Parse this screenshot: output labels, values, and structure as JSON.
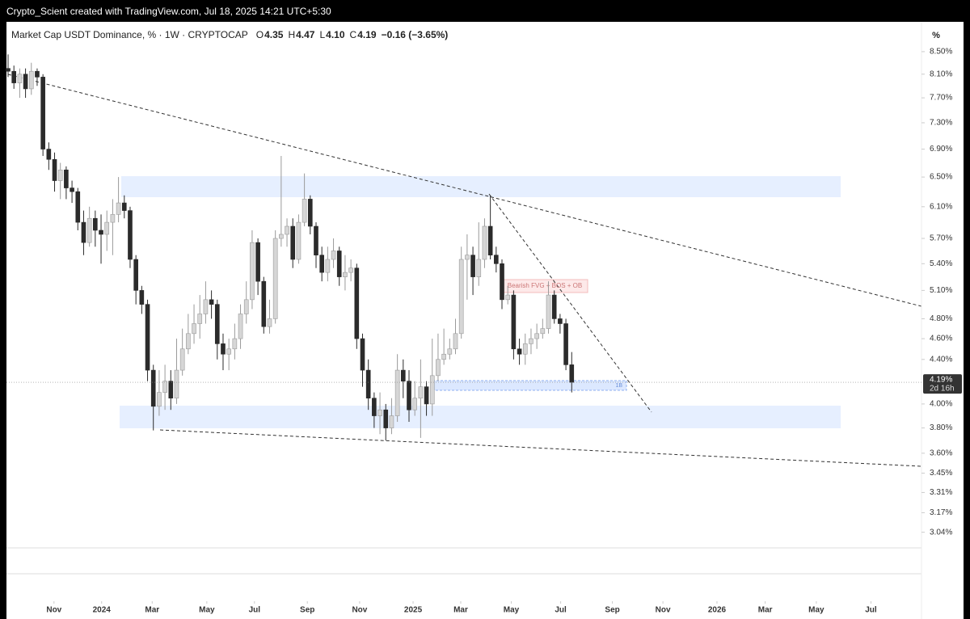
{
  "banner": "Crypto_Scient created with TradingView.com, Jul 18, 2025 14:21 UTC+5:30",
  "legend": {
    "title": "Market Cap USDT Dominance, % · 1W · CRYPTOCAP",
    "ohlc": [
      {
        "key": "O",
        "value": "4.35"
      },
      {
        "key": "H",
        "value": "4.47"
      },
      {
        "key": "L",
        "value": "4.10"
      },
      {
        "key": "C",
        "value": "4.19"
      }
    ],
    "change": "−0.16 (−3.65%)"
  },
  "chart_data": {
    "type": "candlestick",
    "log": true,
    "axis_unit": "%",
    "up_color": "#d6d6d6",
    "down_color": "#2b2b2b",
    "annotation": "Bearish FVG + BOS + OB",
    "zone_label": "1B",
    "current": {
      "value": 4.19,
      "label": "4.19%"
    },
    "countdown": "2d 16h",
    "open": [
      8.2,
      8.15,
      7.95,
      8.1,
      7.85,
      8.15,
      8.05,
      6.9,
      6.75,
      6.45,
      6.6,
      6.35,
      6.3,
      5.9,
      5.65,
      5.95,
      5.8,
      5.75,
      5.9,
      6.0,
      6.15,
      6.05,
      5.45,
      5.1,
      4.95,
      4.3,
      3.98,
      4.1,
      4.2,
      4.05,
      4.3,
      4.5,
      4.65,
      4.75,
      4.85,
      5.0,
      4.95,
      4.55,
      4.45,
      4.5,
      4.6,
      4.85,
      5.0,
      5.65,
      5.2,
      4.72,
      4.8,
      5.7,
      5.75,
      5.85,
      5.45,
      5.9,
      6.2,
      5.85,
      5.5,
      5.3,
      5.45,
      5.55,
      5.25,
      5.3,
      5.35,
      4.6,
      4.3,
      4.05,
      3.9,
      3.95,
      3.8,
      3.9,
      4.3,
      4.2,
      3.95,
      4.05,
      4.15,
      4.0,
      4.25,
      4.4,
      4.45,
      4.5,
      4.65,
      5.45,
      5.5,
      5.25,
      5.45,
      5.85,
      5.5,
      5.4,
      5.0,
      5.05,
      4.5,
      4.45,
      4.55,
      4.6,
      4.65,
      4.7,
      5.05,
      4.8,
      4.75,
      4.35
    ],
    "high": [
      8.45,
      8.25,
      8.2,
      8.2,
      8.3,
      8.2,
      8.1,
      7.0,
      6.85,
      6.7,
      6.65,
      6.45,
      6.35,
      6.05,
      6.1,
      6.05,
      6.0,
      6.05,
      6.2,
      6.5,
      6.25,
      6.1,
      5.5,
      5.15,
      5.0,
      4.35,
      4.3,
      4.35,
      4.3,
      4.6,
      4.7,
      4.85,
      4.95,
      5.05,
      5.2,
      5.1,
      5.0,
      4.65,
      4.6,
      4.75,
      4.95,
      5.2,
      5.8,
      5.7,
      5.25,
      5.0,
      5.8,
      6.8,
      5.95,
      5.95,
      6.0,
      6.55,
      6.25,
      5.9,
      5.6,
      5.6,
      5.7,
      5.6,
      5.5,
      5.45,
      5.4,
      4.65,
      4.4,
      4.1,
      4.1,
      4.0,
      4.05,
      4.45,
      4.4,
      4.3,
      4.2,
      4.4,
      4.2,
      4.6,
      4.65,
      4.7,
      4.6,
      4.8,
      5.6,
      5.75,
      5.6,
      5.9,
      5.95,
      6.25,
      5.6,
      5.45,
      5.15,
      5.1,
      4.6,
      4.65,
      4.7,
      4.75,
      4.8,
      5.2,
      5.1,
      4.85,
      4.8,
      4.47
    ],
    "low": [
      8.05,
      7.85,
      7.7,
      7.7,
      7.75,
      7.9,
      6.8,
      6.6,
      6.3,
      6.2,
      6.2,
      6.15,
      5.8,
      5.5,
      5.6,
      5.6,
      5.4,
      5.55,
      5.5,
      5.9,
      5.95,
      5.35,
      4.95,
      4.85,
      4.2,
      3.78,
      3.9,
      3.95,
      3.95,
      4.0,
      4.25,
      4.45,
      4.55,
      4.6,
      4.75,
      4.8,
      4.4,
      4.3,
      4.3,
      4.4,
      4.5,
      4.75,
      4.9,
      5.05,
      4.65,
      4.65,
      4.75,
      5.6,
      5.6,
      5.35,
      5.4,
      5.85,
      5.75,
      5.35,
      5.2,
      5.2,
      5.35,
      5.15,
      5.1,
      5.2,
      4.5,
      4.15,
      3.95,
      3.8,
      3.75,
      3.7,
      3.75,
      3.85,
      4.05,
      3.85,
      3.9,
      3.72,
      3.9,
      3.9,
      4.2,
      4.35,
      4.4,
      4.45,
      4.6,
      5.0,
      5.05,
      5.15,
      5.35,
      5.45,
      5.3,
      4.9,
      4.95,
      4.4,
      4.35,
      4.35,
      4.45,
      4.5,
      4.6,
      4.65,
      4.75,
      4.65,
      4.3,
      4.1
    ],
    "close": [
      8.15,
      7.95,
      8.1,
      7.85,
      8.15,
      8.05,
      6.9,
      6.75,
      6.45,
      6.6,
      6.35,
      6.3,
      5.9,
      5.65,
      5.95,
      5.8,
      5.75,
      5.9,
      6.0,
      6.15,
      6.05,
      5.45,
      5.1,
      4.95,
      4.3,
      3.98,
      4.1,
      4.2,
      4.05,
      4.3,
      4.5,
      4.65,
      4.75,
      4.85,
      5.0,
      4.95,
      4.55,
      4.45,
      4.5,
      4.6,
      4.85,
      5.0,
      5.65,
      5.2,
      4.72,
      4.8,
      5.7,
      5.75,
      5.85,
      5.45,
      5.9,
      6.2,
      5.85,
      5.5,
      5.3,
      5.45,
      5.55,
      5.25,
      5.3,
      5.35,
      4.6,
      4.3,
      4.05,
      3.9,
      3.95,
      3.8,
      3.9,
      4.3,
      4.2,
      3.95,
      4.05,
      4.15,
      4.0,
      4.25,
      4.4,
      4.45,
      4.5,
      4.65,
      5.45,
      5.5,
      5.25,
      5.45,
      5.85,
      5.5,
      5.4,
      5.0,
      5.05,
      4.5,
      4.45,
      4.55,
      4.6,
      4.65,
      4.7,
      5.05,
      4.8,
      4.75,
      4.35,
      4.19
    ],
    "xlim": [
      -0.28,
      157.2
    ],
    "xticks": [
      {
        "value": 7.9,
        "label": "Nov"
      },
      {
        "value": 16.1,
        "label": "2024"
      },
      {
        "value": 24.8,
        "label": "Mar"
      },
      {
        "value": 34.2,
        "label": "May"
      },
      {
        "value": 42.4,
        "label": "Jul"
      },
      {
        "value": 51.5,
        "label": "Sep"
      },
      {
        "value": 60.5,
        "label": "Nov"
      },
      {
        "value": 69.7,
        "label": "2025"
      },
      {
        "value": 77.9,
        "label": "Mar"
      },
      {
        "value": 86.6,
        "label": "May"
      },
      {
        "value": 95.1,
        "label": "Jul"
      },
      {
        "value": 104.0,
        "label": "Sep"
      },
      {
        "value": 112.7,
        "label": "Nov"
      },
      {
        "value": 122.0,
        "label": "2026"
      },
      {
        "value": 130.3,
        "label": "Mar"
      },
      {
        "value": 139.1,
        "label": "May"
      },
      {
        "value": 148.5,
        "label": "Jul"
      }
    ],
    "ylim": [
      2.94,
      9.06
    ],
    "yticks": [
      {
        "value": 8.5,
        "label": "8.50%"
      },
      {
        "value": 8.1,
        "label": "8.10%"
      },
      {
        "value": 7.7,
        "label": "7.70%"
      },
      {
        "value": 7.3,
        "label": "7.30%"
      },
      {
        "value": 6.9,
        "label": "6.90%"
      },
      {
        "value": 6.5,
        "label": "6.50%"
      },
      {
        "value": 6.1,
        "label": "6.10%"
      },
      {
        "value": 5.7,
        "label": "5.70%"
      },
      {
        "value": 5.4,
        "label": "5.40%"
      },
      {
        "value": 5.1,
        "label": "5.10%"
      },
      {
        "value": 4.8,
        "label": "4.80%"
      },
      {
        "value": 4.6,
        "label": "4.60%"
      },
      {
        "value": 4.4,
        "label": "4.40%"
      },
      {
        "value": 4.0,
        "label": "4.00%"
      },
      {
        "value": 3.8,
        "label": "3.80%"
      },
      {
        "value": 3.6,
        "label": "3.60%"
      },
      {
        "value": 3.45,
        "label": "3.45%"
      },
      {
        "value": 3.31,
        "label": "3.31%"
      },
      {
        "value": 3.17,
        "label": "3.17%"
      },
      {
        "value": 3.04,
        "label": "3.04%"
      }
    ]
  }
}
